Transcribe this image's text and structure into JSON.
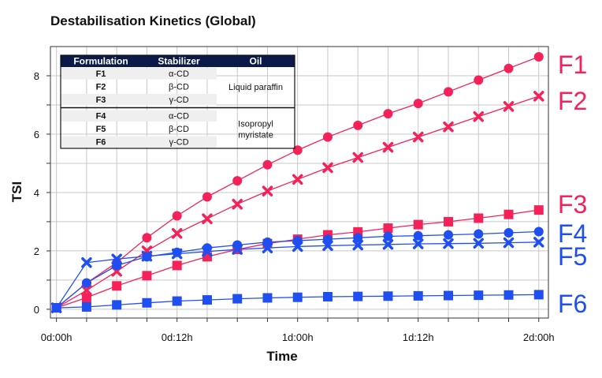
{
  "chart_data": {
    "type": "line",
    "title": "Destabilisation Kinetics (Global)",
    "xlabel": "Time",
    "ylabel": "TSI",
    "xlim": [
      -0.025,
      2.04
    ],
    "ylim": [
      -0.3,
      9.0
    ],
    "x_unit": "days",
    "x_ticks": [
      {
        "value": 0,
        "label": "0d:00h"
      },
      {
        "value": 0.5,
        "label": "0d:12h"
      },
      {
        "value": 1.0,
        "label": "1d:00h"
      },
      {
        "value": 1.5,
        "label": "1d:12h"
      },
      {
        "value": 2.0,
        "label": "2d:00h"
      }
    ],
    "y_ticks": [
      0,
      2,
      4,
      6,
      8
    ],
    "grid": true,
    "x": [
      0,
      0.125,
      0.25,
      0.375,
      0.5,
      0.625,
      0.75,
      0.875,
      1.0,
      1.125,
      1.25,
      1.375,
      1.5,
      1.625,
      1.75,
      1.875,
      2.0
    ],
    "series": [
      {
        "name": "F1",
        "color": "#f5225a",
        "marker": "circle",
        "values": [
          0.05,
          0.9,
          1.6,
          2.45,
          3.2,
          3.85,
          4.4,
          4.95,
          5.45,
          5.9,
          6.3,
          6.7,
          7.05,
          7.45,
          7.85,
          8.25,
          8.65
        ]
      },
      {
        "name": "F2",
        "color": "#f5225a",
        "marker": "x",
        "values": [
          0.05,
          0.65,
          1.3,
          2.0,
          2.6,
          3.1,
          3.6,
          4.05,
          4.45,
          4.85,
          5.2,
          5.55,
          5.9,
          6.25,
          6.6,
          6.95,
          7.3
        ]
      },
      {
        "name": "F3",
        "color": "#f5225a",
        "marker": "square",
        "values": [
          0.05,
          0.4,
          0.8,
          1.15,
          1.5,
          1.8,
          2.05,
          2.25,
          2.4,
          2.55,
          2.65,
          2.78,
          2.9,
          3.0,
          3.12,
          3.25,
          3.4
        ]
      },
      {
        "name": "F4",
        "color": "#1f4ff0",
        "marker": "circle",
        "values": [
          0.05,
          0.9,
          1.5,
          1.8,
          1.95,
          2.1,
          2.2,
          2.3,
          2.35,
          2.4,
          2.45,
          2.5,
          2.52,
          2.55,
          2.58,
          2.62,
          2.66
        ]
      },
      {
        "name": "F5",
        "color": "#1f4ff0",
        "marker": "x",
        "values": [
          0.05,
          1.6,
          1.72,
          1.82,
          1.9,
          1.98,
          2.05,
          2.1,
          2.15,
          2.18,
          2.2,
          2.22,
          2.24,
          2.25,
          2.26,
          2.28,
          2.3
        ]
      },
      {
        "name": "F6",
        "color": "#1f4ff0",
        "marker": "square",
        "values": [
          0.05,
          0.08,
          0.15,
          0.22,
          0.28,
          0.32,
          0.36,
          0.39,
          0.41,
          0.43,
          0.44,
          0.45,
          0.46,
          0.47,
          0.48,
          0.49,
          0.5
        ]
      }
    ],
    "legend_table": {
      "headers": [
        "Formulation",
        "Stabilizer",
        "Oil"
      ],
      "groups": [
        {
          "oil_lines": [
            "Liquid paraffin"
          ],
          "rows": [
            [
              "F1",
              "α-CD"
            ],
            [
              "F2",
              "β-CD"
            ],
            [
              "F3",
              "γ-CD"
            ]
          ]
        },
        {
          "oil_lines": [
            "Isopropyl",
            "myristate"
          ],
          "rows": [
            [
              "F4",
              "α-CD"
            ],
            [
              "F5",
              "β-CD"
            ],
            [
              "F6",
              "γ-CD"
            ]
          ]
        }
      ],
      "placement": "top-left"
    }
  },
  "colors": {
    "red": "#f5225a",
    "blue": "#1f4ff0",
    "grid": "#c8c8c8",
    "header": "#0c1a4a"
  }
}
